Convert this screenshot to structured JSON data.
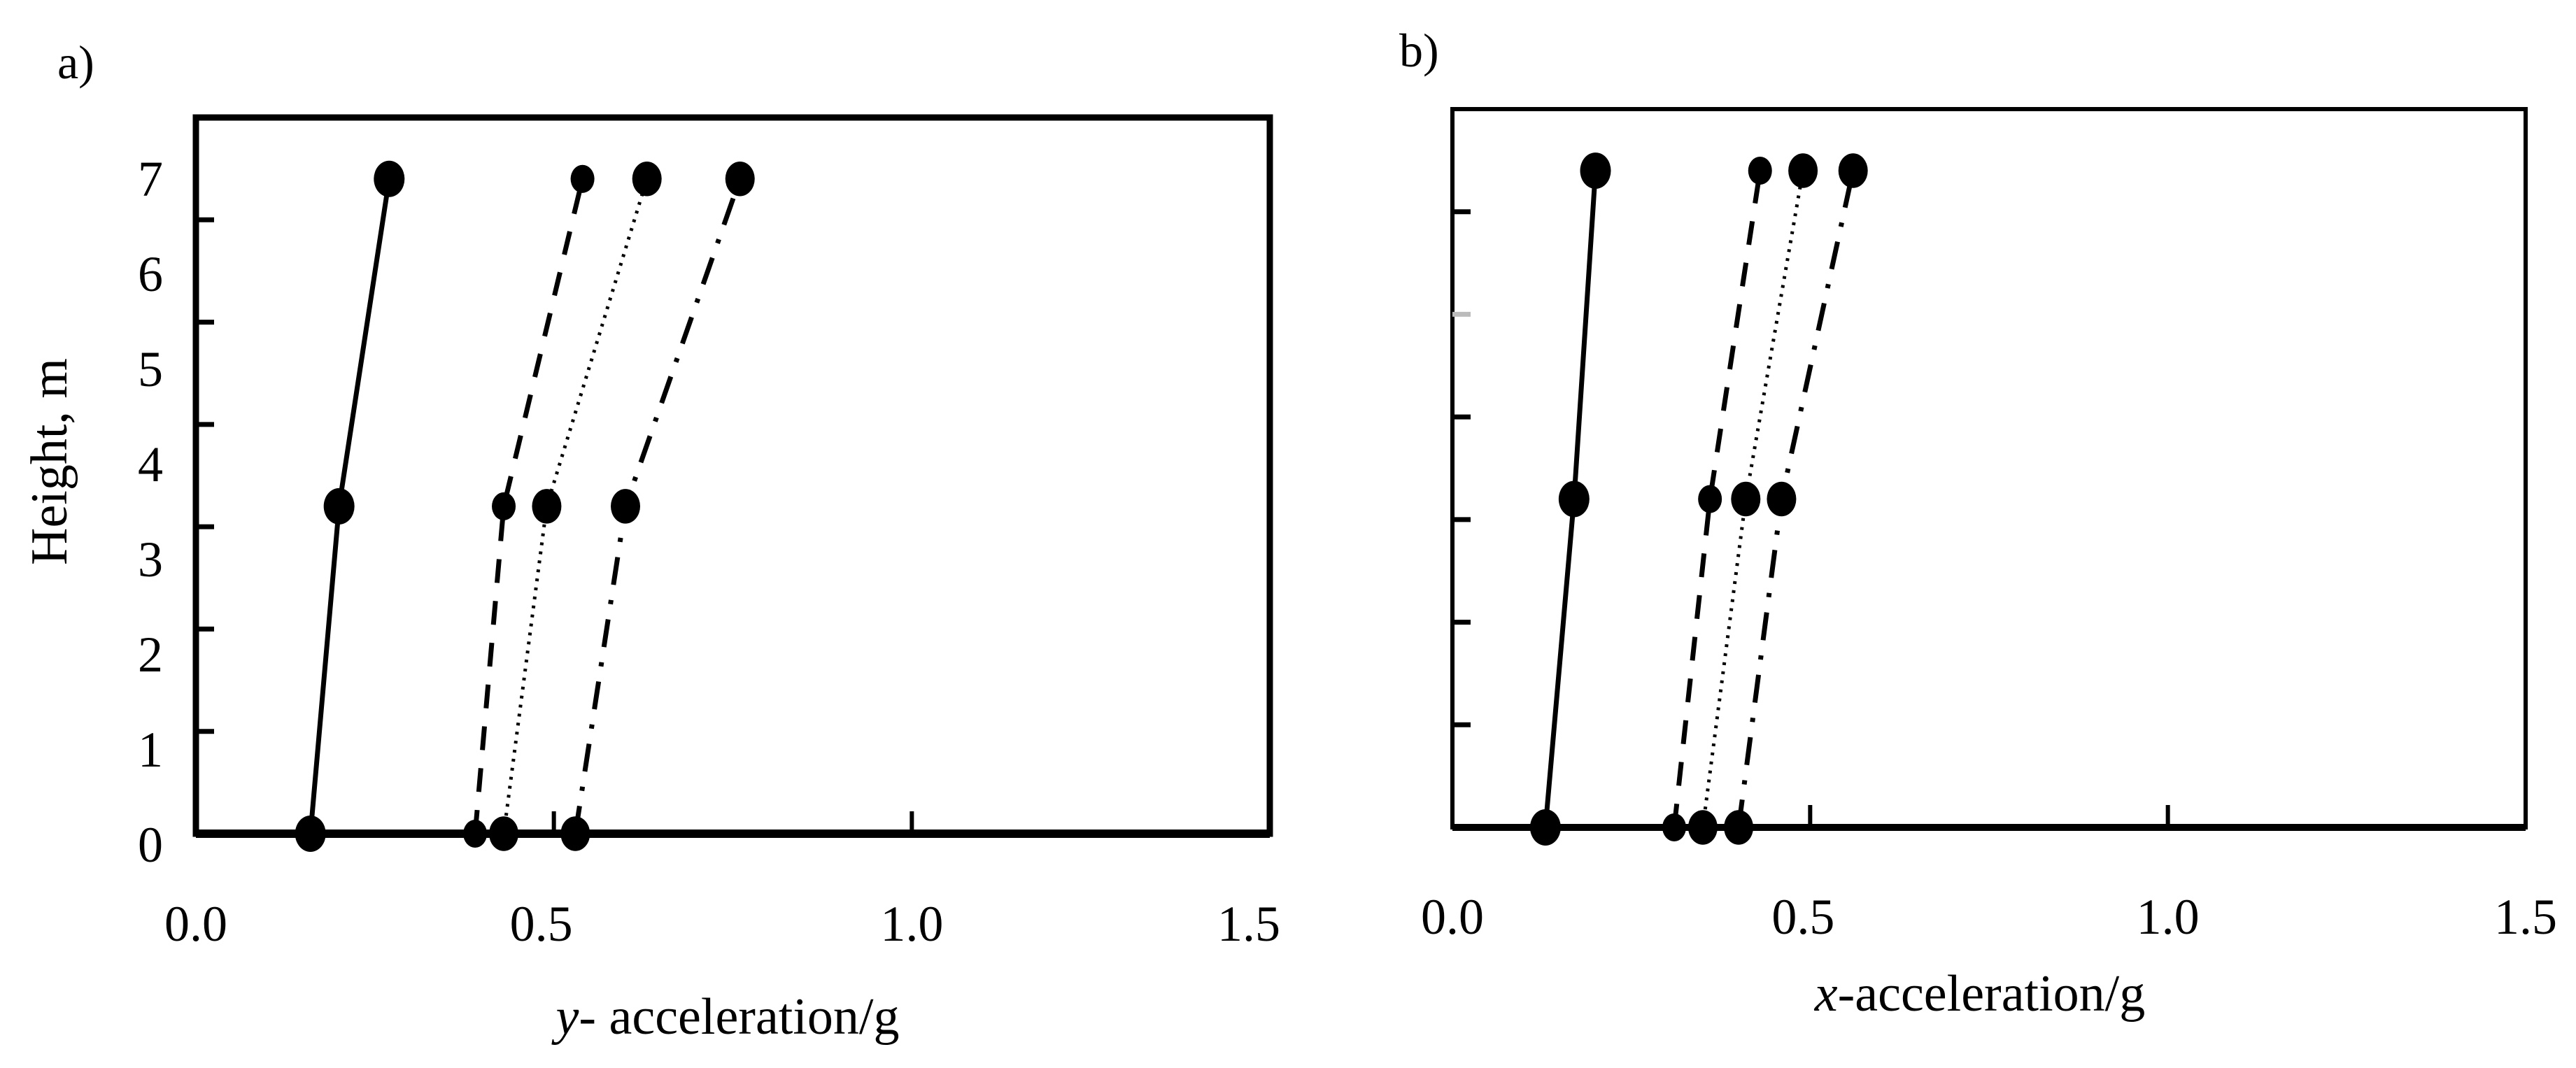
{
  "figure": {
    "panels": [
      {
        "letter": "a)",
        "xlabel_var": "y",
        "xlabel_rest": "- acceleration/g",
        "ylabel": "Height, m"
      },
      {
        "letter": "b)",
        "xlabel_var": "x",
        "xlabel_rest": "-acceleration/g",
        "ylabel": ""
      }
    ]
  },
  "chart_data": [
    {
      "type": "line",
      "panel": "a)",
      "title": "",
      "xlabel": "y- acceleration/g",
      "ylabel": "Height, m",
      "xlim": [
        0.0,
        1.5
      ],
      "ylim": [
        0,
        7
      ],
      "xticks": [
        "0.0",
        "0.5",
        "1.0",
        "1.5"
      ],
      "yticks": [
        "0",
        "1",
        "2",
        "3",
        "4",
        "5",
        "6",
        "7"
      ],
      "grid": false,
      "legend": null,
      "series": [
        {
          "name": "solid",
          "style": "solid",
          "marker_r": 22,
          "x": [
            0.16,
            0.2,
            0.27
          ],
          "y": [
            0,
            3.2,
            6.4
          ]
        },
        {
          "name": "dashed",
          "style": "dashed",
          "marker_r": 17,
          "x": [
            0.39,
            0.43,
            0.54
          ],
          "y": [
            0,
            3.2,
            6.4
          ]
        },
        {
          "name": "dotted",
          "style": "dotted",
          "marker_r": 21,
          "x": [
            0.43,
            0.49,
            0.63
          ],
          "y": [
            0,
            3.2,
            6.4
          ]
        },
        {
          "name": "dash-dot",
          "style": "dashdot",
          "marker_r": 21,
          "x": [
            0.53,
            0.6,
            0.76
          ],
          "y": [
            0,
            3.2,
            6.4
          ]
        }
      ]
    },
    {
      "type": "line",
      "panel": "b)",
      "title": "",
      "xlabel": "x-acceleration/g",
      "ylabel": "",
      "xlim": [
        0.0,
        1.5
      ],
      "ylim": [
        0,
        7
      ],
      "xticks": [
        "0.0",
        "0.5",
        "1.0",
        "1.5"
      ],
      "yticks": [],
      "grid": false,
      "legend": null,
      "series": [
        {
          "name": "solid",
          "style": "solid",
          "marker_r": 22,
          "x": [
            0.13,
            0.17,
            0.2
          ],
          "y": [
            0,
            3.2,
            6.4
          ]
        },
        {
          "name": "dashed",
          "style": "dashed",
          "marker_r": 17,
          "x": [
            0.31,
            0.36,
            0.43
          ],
          "y": [
            0,
            3.2,
            6.4
          ]
        },
        {
          "name": "dotted",
          "style": "dotted",
          "marker_r": 21,
          "x": [
            0.35,
            0.41,
            0.49
          ],
          "y": [
            0,
            3.2,
            6.4
          ]
        },
        {
          "name": "dash-dot",
          "style": "dashdot",
          "marker_r": 21,
          "x": [
            0.4,
            0.46,
            0.56
          ],
          "y": [
            0,
            3.2,
            6.4
          ]
        }
      ]
    }
  ]
}
